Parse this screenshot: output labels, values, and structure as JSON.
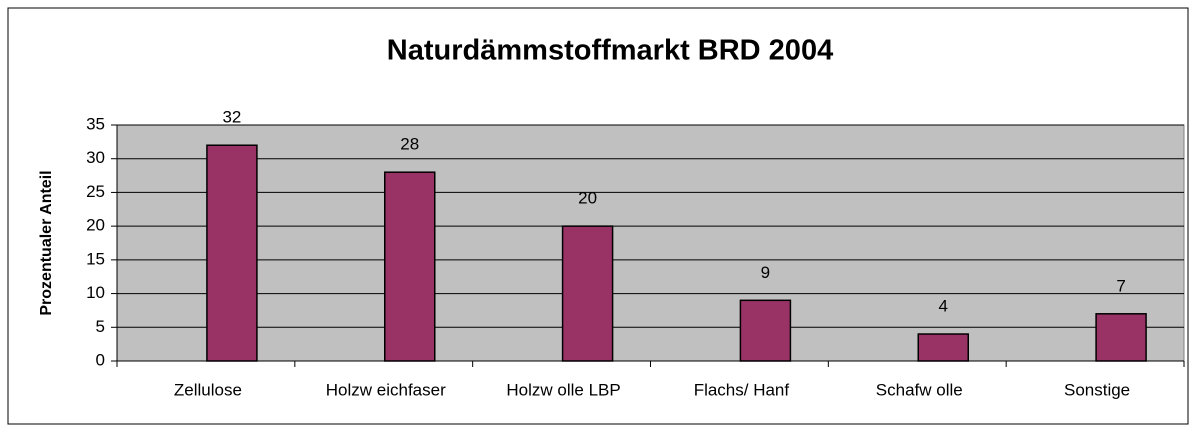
{
  "chart_data": {
    "type": "bar",
    "title": "Naturdämmstoffmarkt BRD 2004",
    "y_label": "Prozentualer Anteil",
    "categories": [
      "Zellulose",
      "Holzw eichfaser",
      "Holzw olle LBP",
      "Flachs/ Hanf",
      "Schafw olle",
      "Sonstige"
    ],
    "values": [
      32,
      28,
      20,
      9,
      4,
      7
    ],
    "color": "#993366",
    "ylim": [
      0,
      35
    ],
    "yticks": [
      0,
      5,
      10,
      15,
      20,
      25,
      30,
      35
    ],
    "grid": true
  }
}
